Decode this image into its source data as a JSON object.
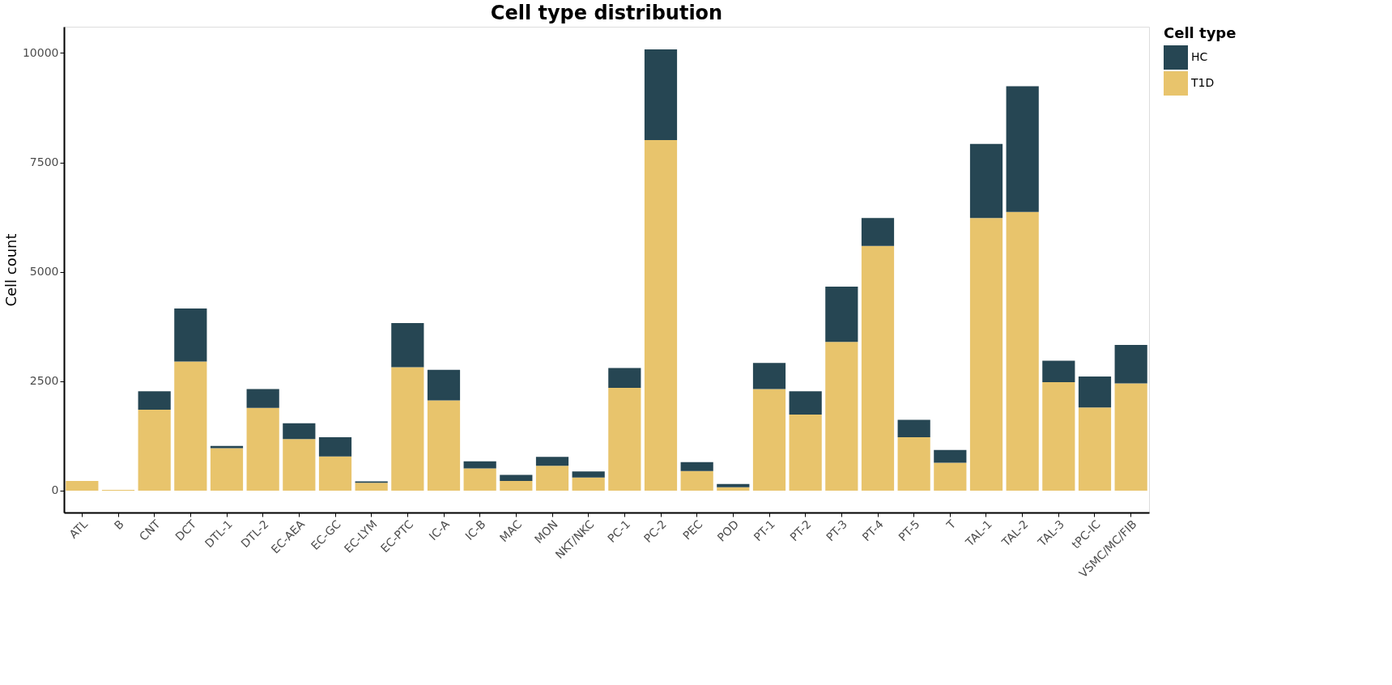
{
  "chart_data": {
    "type": "bar",
    "title": "Cell type distribution",
    "ylabel": "Cell count",
    "legend_title": "Cell type",
    "categories": [
      "ATL",
      "B",
      "CNT",
      "DCT",
      "DTL-1",
      "DTL-2",
      "EC-AEA",
      "EC-GC",
      "EC-LYM",
      "EC-PTC",
      "IC-A",
      "IC-B",
      "MAC",
      "MON",
      "NKT/NKC",
      "PC-1",
      "PC-2",
      "PEC",
      "POD",
      "PT-1",
      "PT-2",
      "PT-3",
      "PT-4",
      "PT-5",
      "T",
      "TAL-1",
      "TAL-2",
      "TAL-3",
      "tPC-IC",
      "VSMC/MC/FIB"
    ],
    "series": [
      {
        "name": "T1D",
        "color": "#e8c46c",
        "values": [
          220,
          20,
          1850,
          2950,
          970,
          1890,
          1180,
          780,
          180,
          2820,
          2060,
          510,
          220,
          570,
          300,
          2350,
          8010,
          450,
          80,
          2320,
          1740,
          3400,
          5590,
          1220,
          640,
          6230,
          6370,
          2480,
          1900,
          2450
        ]
      },
      {
        "name": "HC",
        "color": "#264653",
        "values": [
          0,
          0,
          420,
          1210,
          50,
          430,
          360,
          440,
          30,
          1010,
          700,
          160,
          140,
          200,
          140,
          450,
          2070,
          200,
          70,
          600,
          530,
          1260,
          640,
          400,
          290,
          1690,
          2870,
          490,
          710,
          880
        ]
      }
    ],
    "stacked": true,
    "ylim": [
      -500,
      10600
    ],
    "yticks": [
      0,
      2500,
      5000,
      7500,
      10000
    ],
    "grid": false,
    "legend": "right"
  }
}
